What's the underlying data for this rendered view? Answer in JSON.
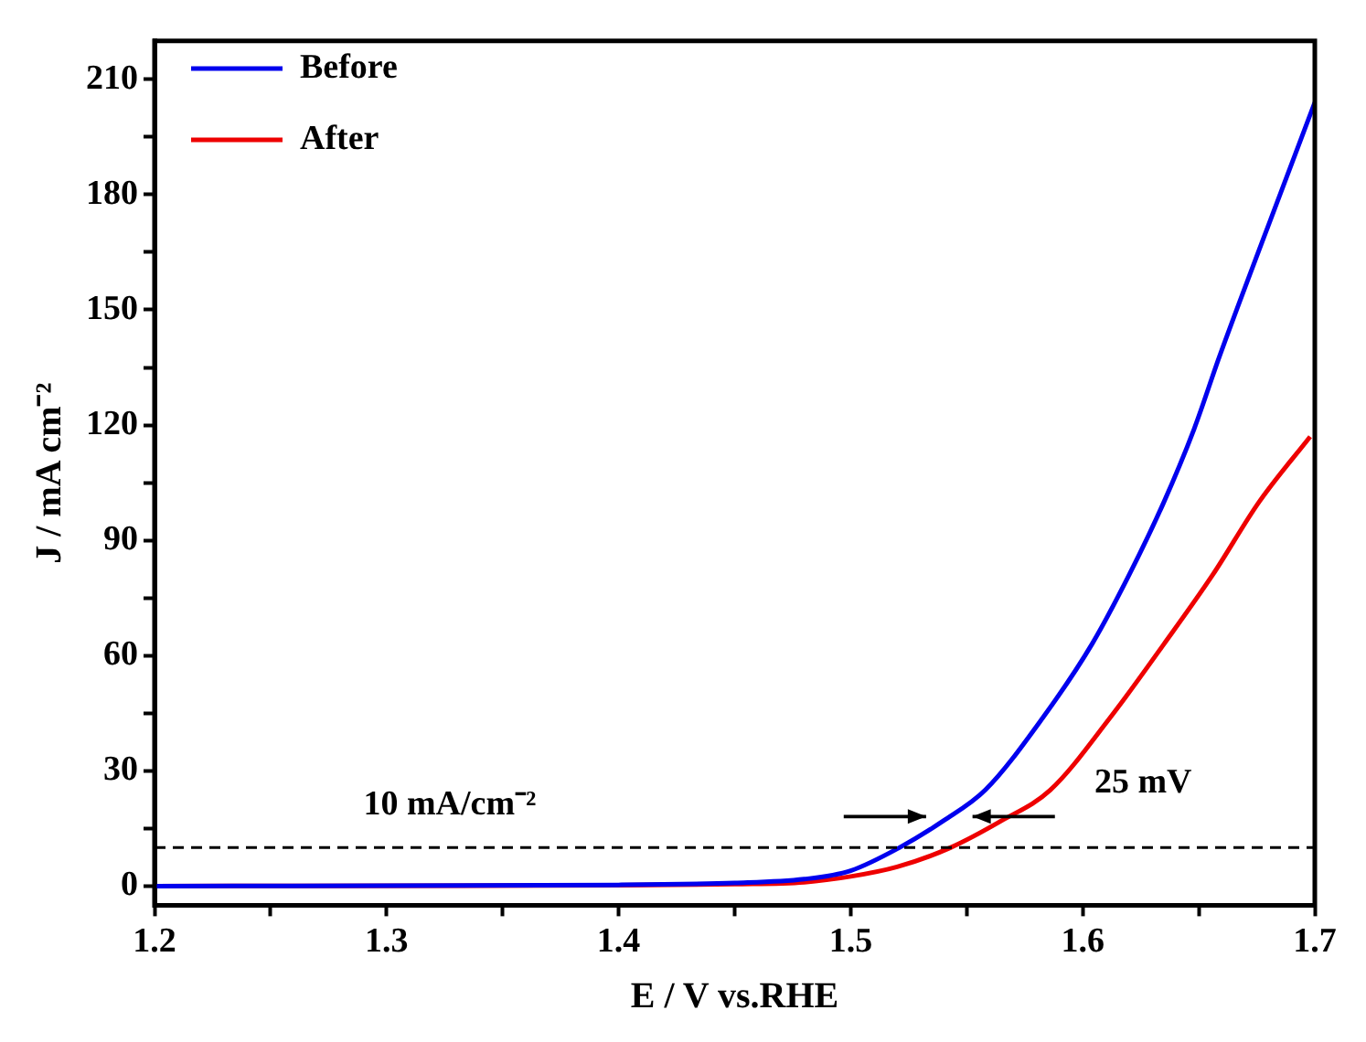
{
  "chart_data": {
    "type": "line",
    "xlabel": "E / V vs.RHE",
    "ylabel": "J / mA cm⁻²",
    "xlim": [
      1.2,
      1.7
    ],
    "ylim": [
      -5,
      220
    ],
    "xticks": [
      1.2,
      {
        "value": 1.25,
        "label": null
      },
      1.3,
      {
        "value": 1.35,
        "label": null
      },
      1.4,
      {
        "value": 1.45,
        "label": null
      },
      1.5,
      {
        "value": 1.55,
        "label": null
      },
      1.6,
      {
        "value": 1.65,
        "label": null
      },
      1.7
    ],
    "yticks": [
      0,
      {
        "value": 15,
        "label": null
      },
      30,
      {
        "value": 45,
        "label": null
      },
      60,
      {
        "value": 75,
        "label": null
      },
      90,
      {
        "value": 105,
        "label": null
      },
      120,
      {
        "value": 135,
        "label": null
      },
      150,
      {
        "value": 165,
        "label": null
      },
      180,
      {
        "value": 195,
        "label": null
      },
      210
    ],
    "grid": false,
    "legend": "top left",
    "marker": "none",
    "series": [
      {
        "name": "Before",
        "color": "#0000ee",
        "x": [
          1.2,
          1.4,
          1.45,
          1.48,
          1.5,
          1.521,
          1.54,
          1.558,
          1.583,
          1.604,
          1.62,
          1.635,
          1.648,
          1.659,
          1.68,
          1.7
        ],
        "values": [
          0,
          0.3,
          0.8,
          1.8,
          4,
          10,
          17,
          25,
          44,
          63,
          81,
          100,
          119,
          138,
          172,
          204
        ]
      },
      {
        "name": "After",
        "color": "#ee0000",
        "x": [
          1.2,
          1.4,
          1.45,
          1.48,
          1.5,
          1.52,
          1.543,
          1.565,
          1.586,
          1.612,
          1.635,
          1.656,
          1.676,
          1.698
        ],
        "values": [
          0,
          0.2,
          0.5,
          1,
          2.5,
          5,
          10,
          17,
          25,
          44,
          63,
          81,
          100,
          117
        ]
      }
    ],
    "ref_lines": [
      {
        "axis": "y",
        "value": 10,
        "label": "10 mA/cm⁻²",
        "color": "#000000",
        "line_style": "dashed"
      }
    ],
    "annotations": [
      "25 mV"
    ]
  }
}
